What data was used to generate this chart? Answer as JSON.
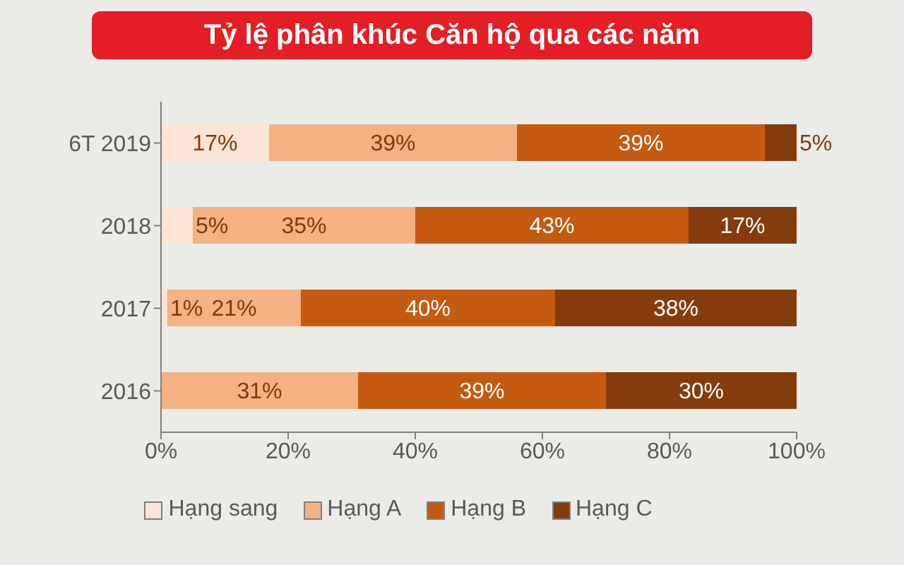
{
  "chart_data": {
    "type": "bar",
    "orientation": "horizontal",
    "stacked": true,
    "title": "Tỷ lệ phân khúc Căn hộ qua các năm",
    "categories": [
      "6T 2019",
      "2018",
      "2017",
      "2016"
    ],
    "series": [
      {
        "name": "Hạng sang",
        "color": "#fce4d6",
        "values": [
          17,
          5,
          1,
          null
        ],
        "value_labels": [
          "17%",
          "5%",
          "1%",
          null
        ]
      },
      {
        "name": "Hạng A",
        "color": "#f4b183",
        "values": [
          39,
          35,
          21,
          31
        ],
        "value_labels": [
          "39%",
          "35%",
          "21%",
          "31%"
        ]
      },
      {
        "name": "Hạng B",
        "color": "#c55a11",
        "values": [
          39,
          43,
          40,
          39
        ],
        "value_labels": [
          "39%",
          "43%",
          "40%",
          "39%"
        ]
      },
      {
        "name": "Hạng C",
        "color": "#843c0c",
        "values": [
          5,
          17,
          38,
          30
        ],
        "value_labels": [
          "5%",
          "17%",
          "38%",
          "30%"
        ]
      }
    ],
    "xlim": [
      0,
      100
    ],
    "xticks": [
      {
        "value": 0,
        "label": "0%"
      },
      {
        "value": 20,
        "label": "20%"
      },
      {
        "value": 40,
        "label": "40%"
      },
      {
        "value": 60,
        "label": "60%"
      },
      {
        "value": 80,
        "label": "80%"
      },
      {
        "value": 100,
        "label": "100%"
      }
    ],
    "grid": false,
    "legend": "bottom"
  }
}
